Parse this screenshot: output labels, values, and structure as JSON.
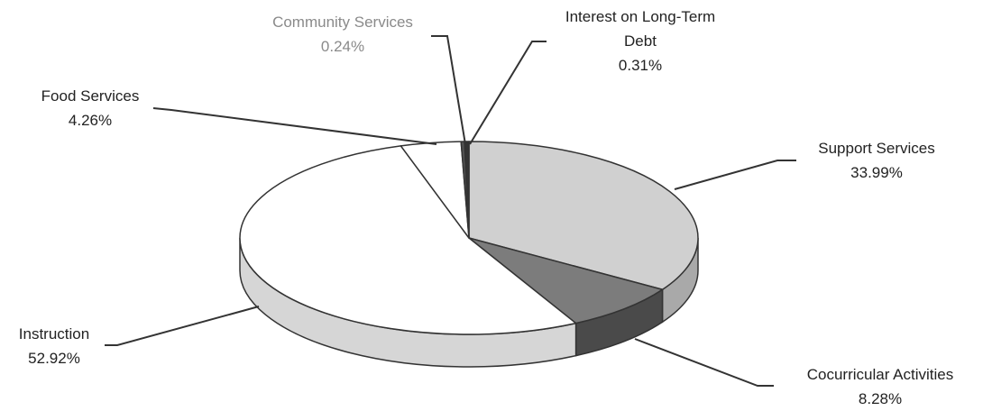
{
  "chart_data": {
    "type": "pie",
    "title": "",
    "slices": [
      {
        "name": "Support Services",
        "value": 33.99,
        "label": "33.99%",
        "color": "#d0d0d0"
      },
      {
        "name": "Cocurricular Activities",
        "value": 8.28,
        "label": "8.28%",
        "color": "#7c7c7c"
      },
      {
        "name": "Instruction",
        "value": 52.92,
        "label": "52.92%",
        "color": "#ffffff"
      },
      {
        "name": "Food Services",
        "value": 4.26,
        "label": "4.26%",
        "color": "#ffffff"
      },
      {
        "name": "Community Services",
        "value": 0.24,
        "label": "0.24%",
        "color": "#555555"
      },
      {
        "name": "Interest on Long-Term Debt",
        "value": 0.31,
        "label": "0.31%",
        "color": "#333333"
      }
    ],
    "legend": "none",
    "style": "3d-tilted"
  },
  "labels": {
    "community_name": "Community Services",
    "community_pct": "0.24%",
    "interest_name_1": "Interest on Long-Term",
    "interest_name_2": "Debt",
    "interest_pct": "0.31%",
    "food_name": "Food Services",
    "food_pct": "4.26%",
    "support_name": "Support Services",
    "support_pct": "33.99%",
    "instruction_name": "Instruction",
    "instruction_pct": "52.92%",
    "cocurricular_name": "Cocurricular Activities",
    "cocurricular_pct": "8.28%"
  }
}
